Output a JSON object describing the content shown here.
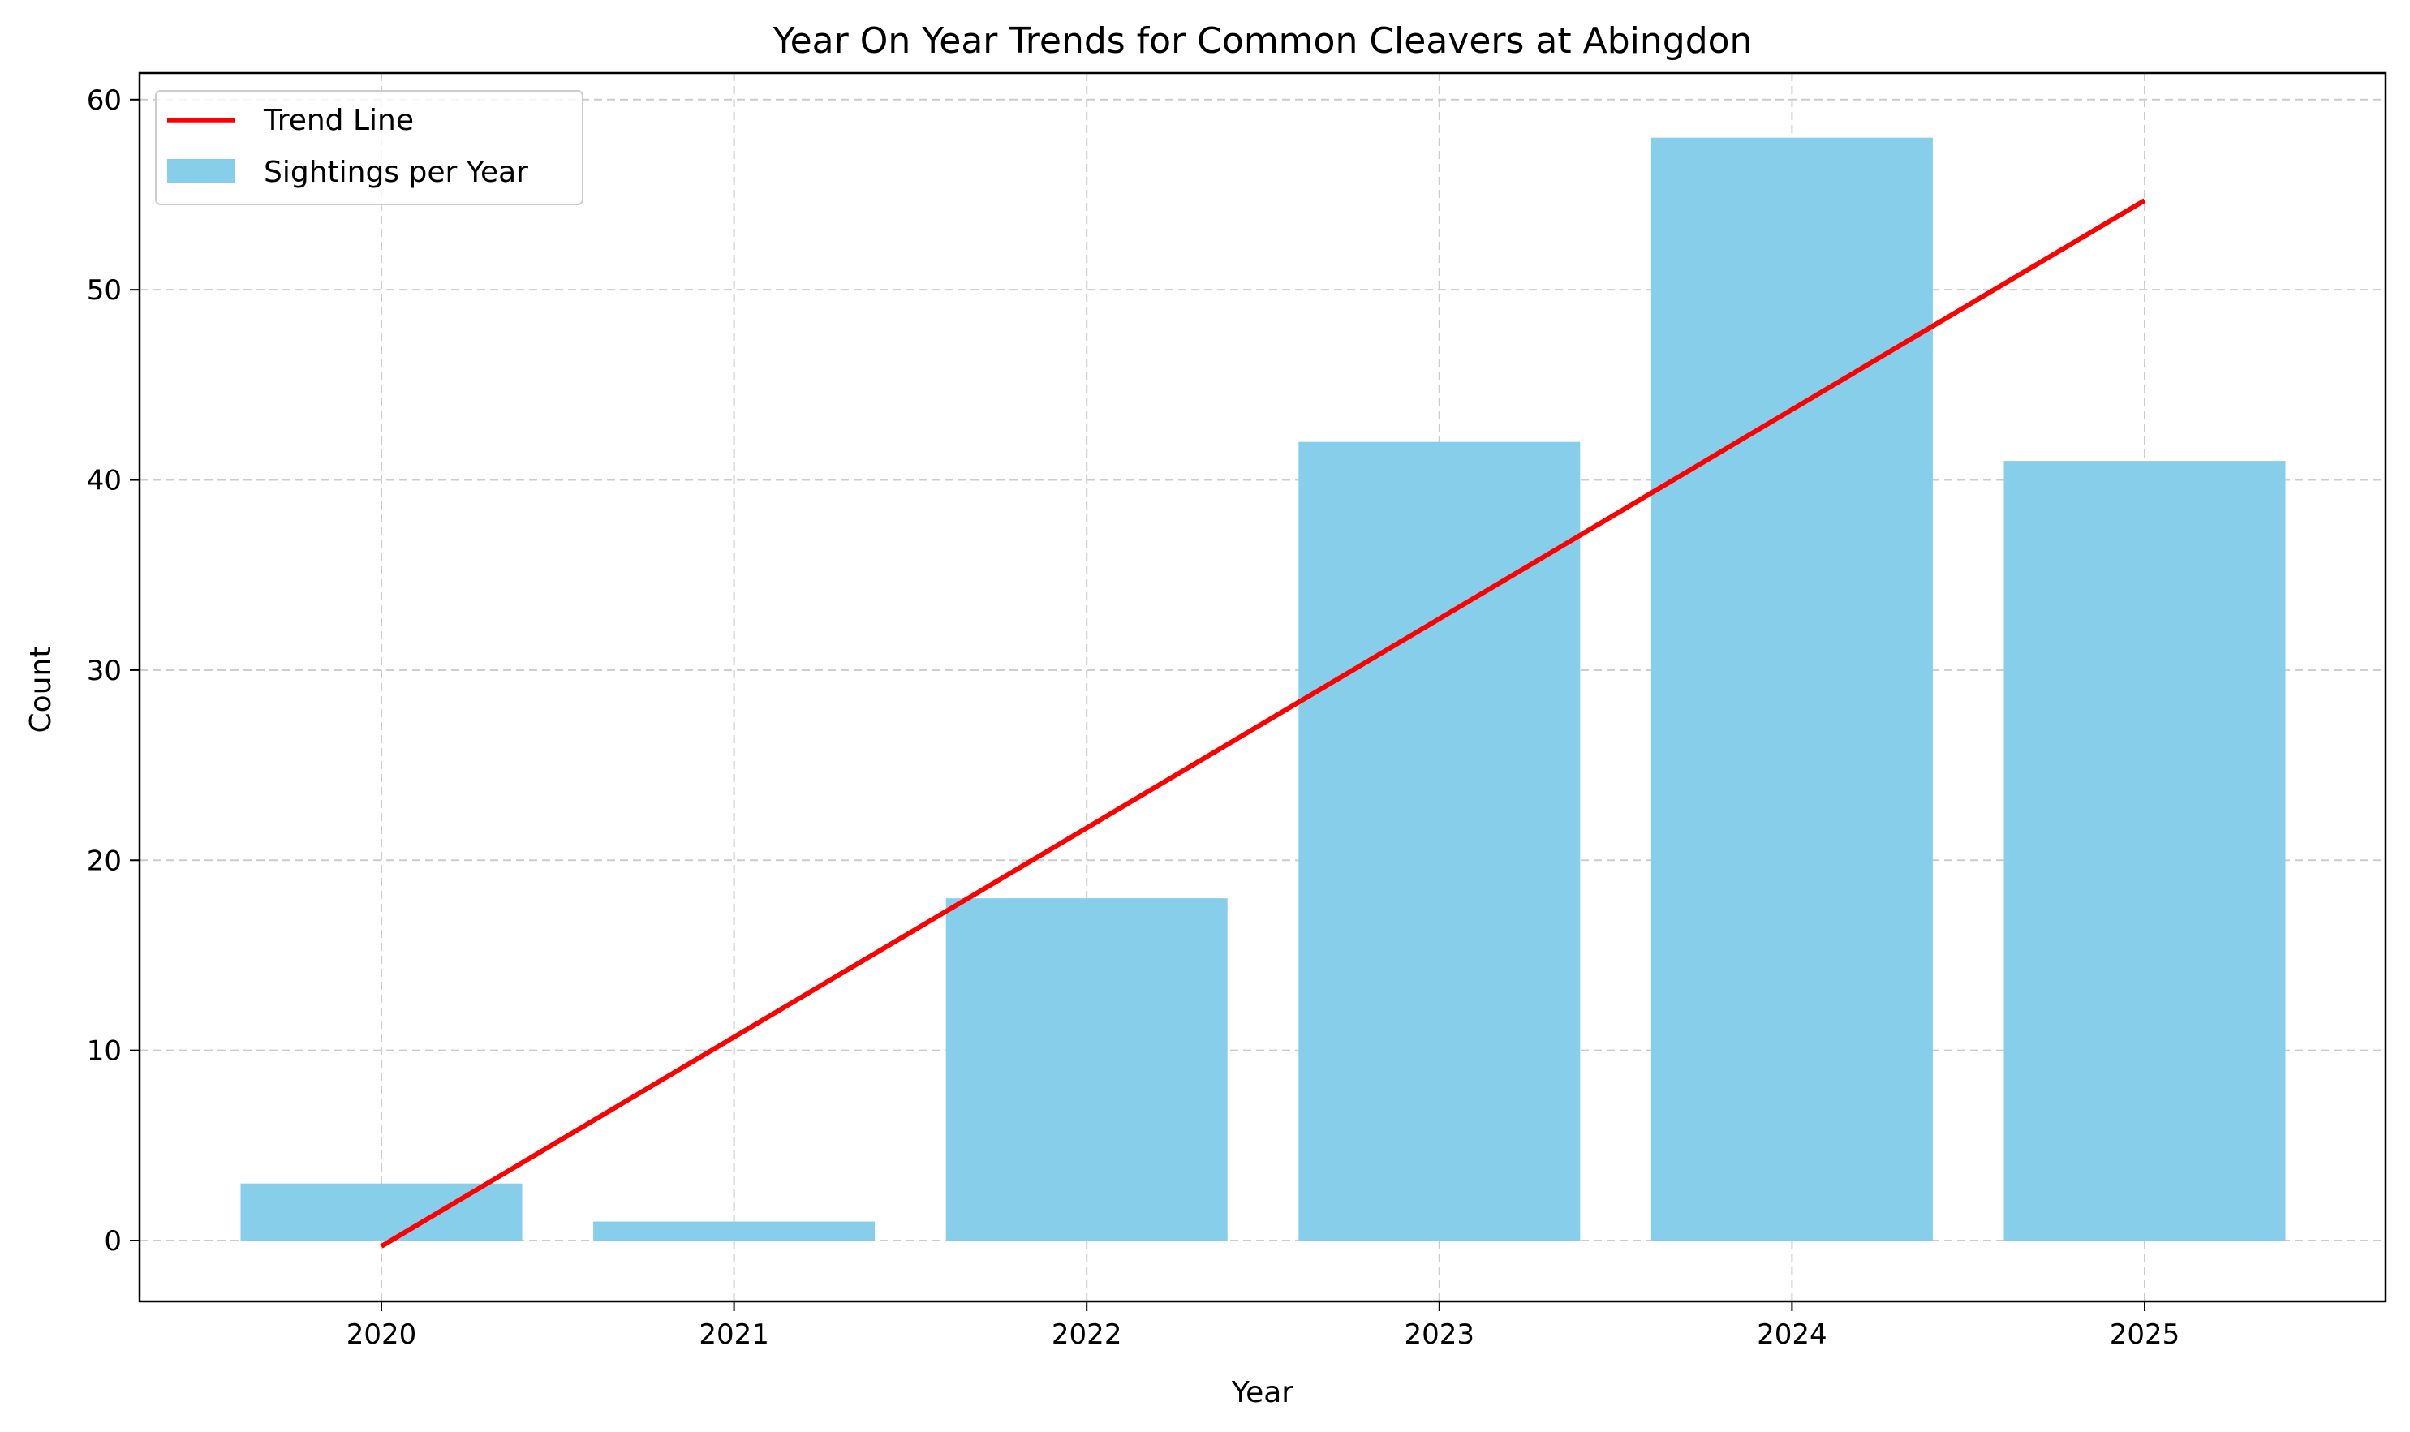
{
  "chart_data": {
    "type": "bar",
    "title": "Year On Year Trends for Common Cleavers at Abingdon",
    "xlabel": "Year",
    "ylabel": "Count",
    "categories": [
      "2020",
      "2021",
      "2022",
      "2023",
      "2024",
      "2025"
    ],
    "series": [
      {
        "name": "Sightings per Year",
        "kind": "bar",
        "color": "#87ceeb",
        "values": [
          3,
          1,
          18,
          42,
          58,
          41
        ]
      },
      {
        "name": "Trend Line",
        "kind": "line",
        "color": "#ff0000",
        "values": [
          -0.3,
          10.7,
          21.7,
          32.7,
          43.7,
          54.7
        ]
      }
    ],
    "ylim": [
      -3.2,
      61.4
    ],
    "yticks": [
      0,
      10,
      20,
      30,
      40,
      50,
      60
    ],
    "grid": true,
    "legend_position": "top-left"
  }
}
